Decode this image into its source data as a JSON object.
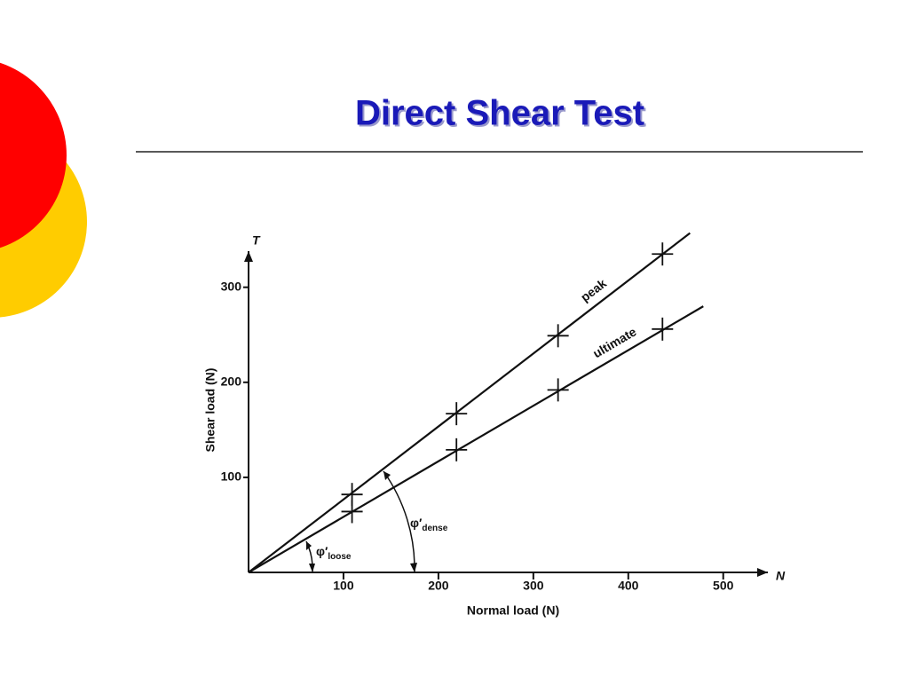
{
  "title": "Direct Shear Test",
  "chart_data": {
    "type": "line",
    "x_label": "Normal load (N)",
    "y_label": "Shear load (N)",
    "x_axis_symbol": "N",
    "y_axis_symbol": "T",
    "xlim": [
      0,
      547
    ],
    "ylim": [
      0,
      338
    ],
    "xticks": [
      100,
      200,
      300,
      400,
      500
    ],
    "yticks": [
      100,
      200,
      300
    ],
    "series": [
      {
        "name": "peak",
        "color": "#111111",
        "x": [
          109,
          219,
          326,
          436
        ],
        "values": [
          82,
          167,
          249,
          335
        ],
        "line_x": [
          0,
          465
        ],
        "line_y": [
          0,
          357
        ]
      },
      {
        "name": "ultimate",
        "color": "#111111",
        "x": [
          109,
          219,
          326,
          436
        ],
        "values": [
          64,
          129,
          192,
          256
        ],
        "line_x": [
          0,
          479
        ],
        "line_y": [
          0,
          280
        ]
      }
    ],
    "annotations": [
      {
        "symbol": "φ′",
        "subscript": "dense"
      },
      {
        "symbol": "φ′",
        "subscript": "loose"
      }
    ]
  }
}
